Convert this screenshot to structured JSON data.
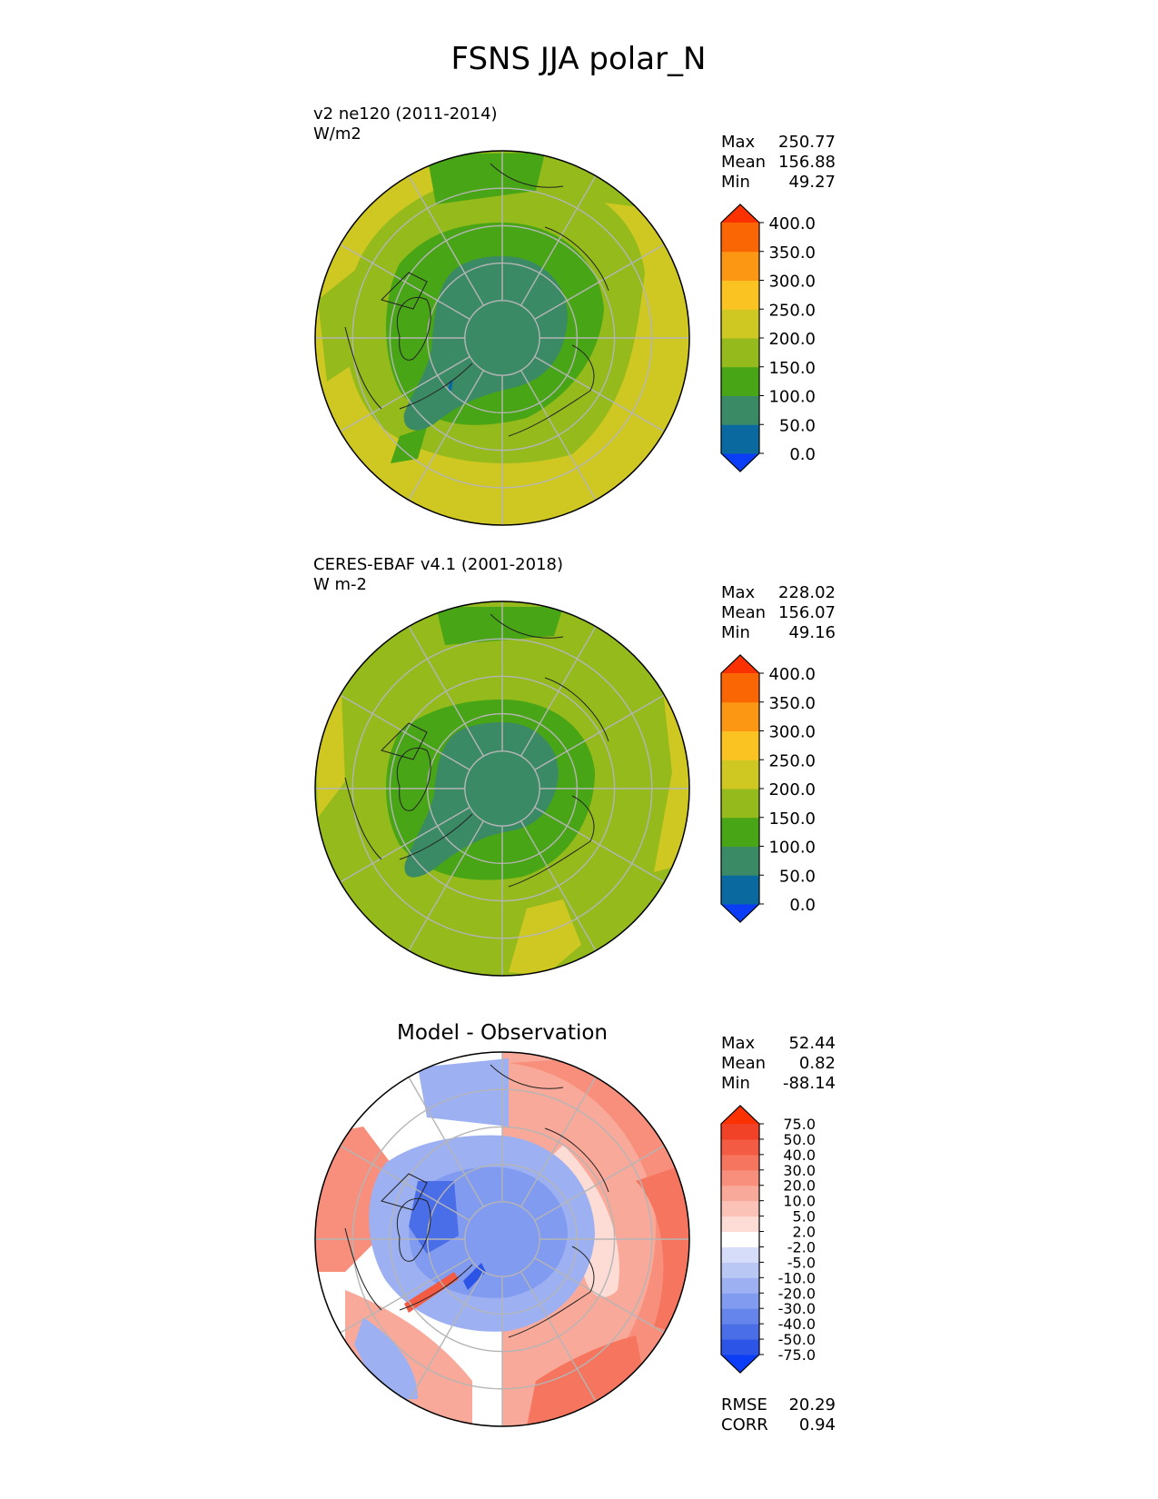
{
  "figure": {
    "title": "FSNS JJA polar_N"
  },
  "panels": [
    {
      "id": "test",
      "title_line1": "v2 ne120 (2011-2014)",
      "title_line2": "W/m2",
      "center_title": "",
      "stats": [
        {
          "label": "Max",
          "value": "250.77"
        },
        {
          "label": "Mean",
          "value": "156.88"
        },
        {
          "label": "Min",
          "value": "49.27"
        }
      ],
      "colorbar": {
        "ticks": [
          "0.0",
          "50.0",
          "100.0",
          "150.0",
          "200.0",
          "250.0",
          "300.0",
          "350.0",
          "400.0"
        ],
        "colors": [
          "#0a3df5",
          "#0a6aa0",
          "#3b8a66",
          "#48a516",
          "#94ba1b",
          "#cfc823",
          "#fbc321",
          "#fb9712",
          "#fb6604",
          "#fb3100"
        ]
      }
    },
    {
      "id": "reference",
      "title_line1": "CERES-EBAF v4.1 (2001-2018)",
      "title_line2": "W m-2",
      "center_title": "",
      "stats": [
        {
          "label": "Max",
          "value": "228.02"
        },
        {
          "label": "Mean",
          "value": "156.07"
        },
        {
          "label": "Min",
          "value": "49.16"
        }
      ],
      "colorbar": {
        "ticks": [
          "0.0",
          "50.0",
          "100.0",
          "150.0",
          "200.0",
          "250.0",
          "300.0",
          "350.0",
          "400.0"
        ],
        "colors": [
          "#0a3df5",
          "#0a6aa0",
          "#3b8a66",
          "#48a516",
          "#94ba1b",
          "#cfc823",
          "#fbc321",
          "#fb9712",
          "#fb6604",
          "#fb3100"
        ]
      }
    },
    {
      "id": "diff",
      "title_line1": "",
      "title_line2": "",
      "center_title": "Model - Observation",
      "stats": [
        {
          "label": "Max",
          "value": "52.44"
        },
        {
          "label": "Mean",
          "value": "0.82"
        },
        {
          "label": "Min",
          "value": "-88.14"
        }
      ],
      "colorbar": {
        "ticks": [
          "-75.0",
          "-50.0",
          "-40.0",
          "-30.0",
          "-20.0",
          "-10.0",
          "-5.0",
          "-2.0",
          "2.0",
          "5.0",
          "10.0",
          "20.0",
          "30.0",
          "40.0",
          "50.0",
          "75.0"
        ],
        "colors": [
          "#0a3df5",
          "#2c55e8",
          "#4a6ee8",
          "#6585ec",
          "#819bf0",
          "#9db1f2",
          "#b9c7f5",
          "#d6ddf8",
          "#ffffff",
          "#fcdcd5",
          "#fbc3b7",
          "#f9a999",
          "#f78f7c",
          "#f5755f",
          "#f35b42",
          "#f14126",
          "#fb3100"
        ]
      },
      "extra_stats": [
        {
          "label": "RMSE",
          "value": "20.29"
        },
        {
          "label": "CORR",
          "value": "0.94"
        }
      ]
    }
  ]
}
